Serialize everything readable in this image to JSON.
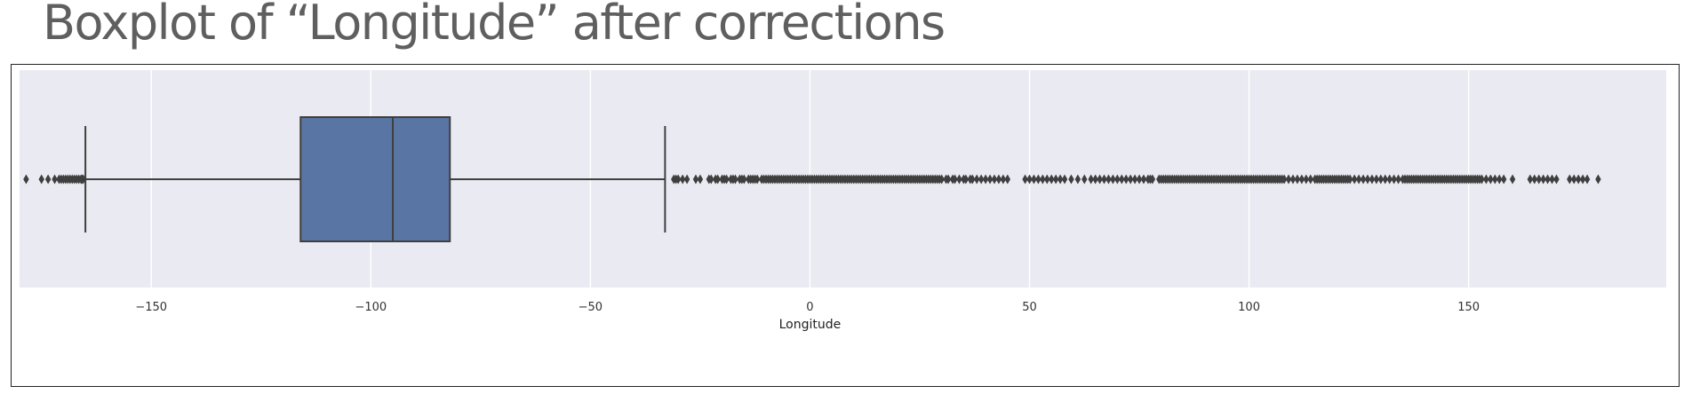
{
  "page": {
    "title": "Boxplot of “Longitude” after corrections"
  },
  "chart_data": {
    "type": "boxplot",
    "orientation": "horizontal",
    "title": "",
    "xlabel": "Longitude",
    "ylabel": "",
    "xlim": [
      -180,
      195
    ],
    "xticks": [
      -150,
      -100,
      -50,
      0,
      50,
      100,
      150
    ],
    "grid": true,
    "box": {
      "whisker_low": -165,
      "q1": -116,
      "median": -95,
      "q3": -82,
      "whisker_high": -33,
      "fill_color": "#5975a4",
      "line_color": "#3f3f3f"
    },
    "outliers": {
      "marker": "diamond",
      "color": "#3f3f3f",
      "values": [
        -178.5,
        -175,
        -173.5,
        -172,
        -171,
        -170.5,
        -170,
        -169.5,
        -169,
        -168.5,
        -168,
        -167.5,
        -167,
        -166.5,
        -166,
        -165.8,
        -165.5,
        -31,
        -30.5,
        -30,
        -29,
        -28,
        -26,
        -25,
        -23,
        -22.5,
        -21.5,
        -21,
        -20,
        -19.5,
        -19,
        -18,
        -17.5,
        -17,
        -16,
        -15.5,
        -15,
        -14,
        -13.5,
        -13,
        -12.5,
        -12,
        -11,
        -10.5,
        -10,
        -9.5,
        -9,
        -8.5,
        -8,
        -7.5,
        -7,
        -6.5,
        -6,
        -5.5,
        -5,
        -4.5,
        -4,
        -3.5,
        -3,
        -2.5,
        -2,
        -1.5,
        -1,
        -0.5,
        0,
        0.5,
        1,
        1.5,
        2,
        2.5,
        3,
        3.5,
        4,
        4.5,
        5,
        5.5,
        6,
        6.5,
        7,
        7.5,
        8,
        8.5,
        9,
        9.5,
        10,
        10.5,
        11,
        11.5,
        12,
        12.5,
        13,
        13.5,
        14,
        14.5,
        15,
        15.5,
        16,
        16.5,
        17,
        17.5,
        18,
        18.5,
        19,
        19.5,
        20,
        20.5,
        21,
        21.5,
        22,
        22.5,
        23,
        23.5,
        24,
        24.5,
        25,
        25.5,
        26,
        26.5,
        27,
        27.5,
        28,
        28.5,
        29,
        29.5,
        30,
        31,
        31.5,
        32.5,
        33,
        34,
        35,
        35.5,
        36.5,
        37,
        38,
        39,
        40,
        41,
        42,
        43,
        44,
        45,
        49,
        50,
        51,
        52,
        53,
        54,
        55,
        56,
        57,
        58,
        59.5,
        61,
        62.5,
        64,
        65,
        66,
        67,
        68,
        69,
        70,
        71,
        72,
        73,
        74,
        75,
        76,
        77,
        77.5,
        78,
        79.5,
        80,
        80.5,
        81,
        81.5,
        82,
        82.5,
        83,
        83.5,
        84,
        84.5,
        85,
        85.5,
        86,
        86.5,
        87,
        87.5,
        88,
        88.5,
        89,
        89.5,
        90,
        90.5,
        91,
        91.5,
        92,
        92.5,
        93,
        93.5,
        94,
        94.5,
        95,
        95.5,
        96,
        96.5,
        97,
        97.5,
        98,
        98.5,
        99,
        99.5,
        100,
        100.5,
        101,
        101.5,
        102,
        102.5,
        103,
        103.5,
        104,
        104.5,
        105,
        105.5,
        106,
        106.5,
        107,
        107.5,
        108,
        109,
        110,
        111,
        112,
        113,
        114,
        115,
        115.5,
        116,
        116.5,
        117,
        117.5,
        118,
        118.5,
        119,
        119.5,
        120,
        120.5,
        121,
        121.5,
        122,
        122.5,
        123,
        124,
        125,
        126,
        127,
        128,
        129,
        130,
        131,
        132,
        133,
        134,
        135,
        135.5,
        136,
        136.5,
        137,
        137.5,
        138,
        138.5,
        139,
        139.5,
        140,
        140.5,
        141,
        141.5,
        142,
        142.5,
        143,
        143.5,
        144,
        144.5,
        145,
        145.5,
        146,
        146.5,
        147,
        147.5,
        148,
        148.5,
        149,
        149.5,
        150,
        150.5,
        151,
        151.5,
        152,
        152.5,
        153,
        154,
        155,
        156,
        157,
        158,
        160,
        164,
        165,
        166,
        167,
        168,
        169,
        170,
        173,
        174,
        175,
        176,
        177,
        179.5
      ]
    }
  }
}
